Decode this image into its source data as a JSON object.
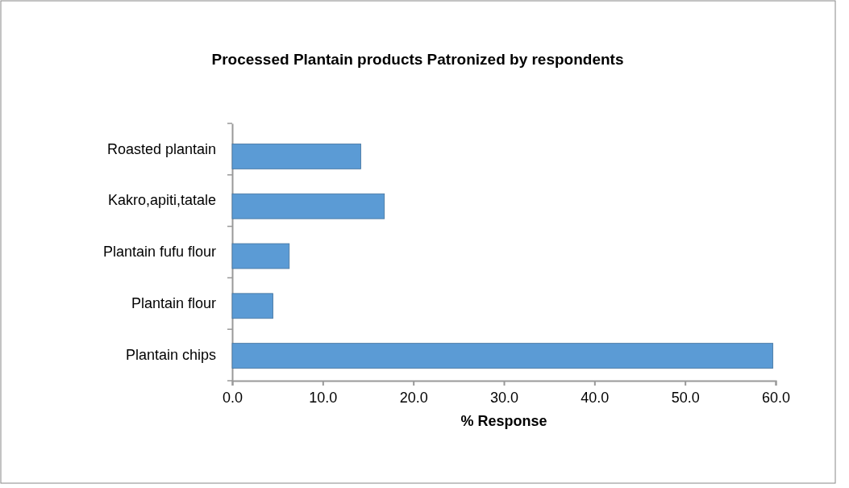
{
  "chart_data": {
    "type": "bar",
    "orientation": "horizontal",
    "title": "Processed Plantain products Patronized by respondents",
    "xlabel": "% Response",
    "categories": [
      "Roasted plantain",
      "Kakro,apiti,tatale",
      "Plantain fufu flour",
      "Plantain flour",
      "Plantain chips"
    ],
    "values": [
      14.2,
      16.8,
      6.3,
      4.5,
      59.7
    ],
    "color": "#5b9bd5",
    "xlim": [
      0,
      60
    ],
    "xticks": [
      {
        "value": 0,
        "label": "0.0"
      },
      {
        "value": 10,
        "label": "10.0"
      },
      {
        "value": 20,
        "label": "20.0"
      },
      {
        "value": 30,
        "label": "30.0"
      },
      {
        "value": 40,
        "label": "40.0"
      },
      {
        "value": 50,
        "label": "50.0"
      },
      {
        "value": 60,
        "label": "60.0"
      }
    ],
    "grid": false
  }
}
